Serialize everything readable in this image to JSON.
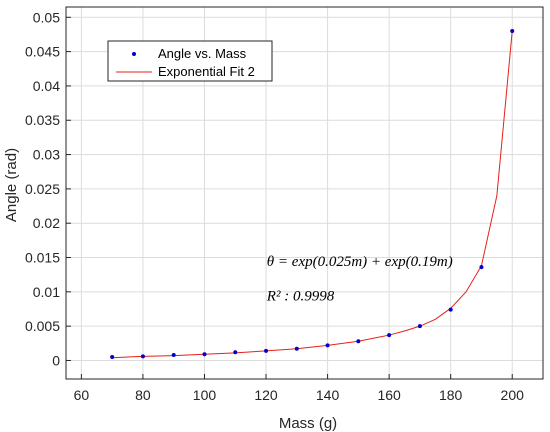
{
  "chart_data": {
    "type": "scatter",
    "xlabel": "Mass (g)",
    "ylabel": "Angle (rad)",
    "xlim": [
      55,
      210
    ],
    "ylim": [
      -0.0027,
      0.0515
    ],
    "x_ticks": [
      60,
      80,
      100,
      120,
      140,
      160,
      180,
      200
    ],
    "x_tick_labels": [
      "60",
      "80",
      "100",
      "120",
      "140",
      "160",
      "180",
      "200"
    ],
    "y_ticks": [
      0,
      0.005,
      0.01,
      0.015,
      0.02,
      0.025,
      0.03,
      0.035,
      0.04,
      0.045,
      0.05
    ],
    "y_tick_labels": [
      "0",
      "0.005",
      "0.01",
      "0.015",
      "0.02",
      "0.025",
      "0.03",
      "0.035",
      "0.04",
      "0.045",
      "0.05"
    ],
    "grid": true,
    "legend_position": "top-left",
    "series": [
      {
        "name": "Angle vs. Mass",
        "kind": "points",
        "color": "#0000cc",
        "x": [
          70,
          80,
          90,
          100,
          110,
          120,
          130,
          140,
          150,
          160,
          170,
          180,
          190,
          200
        ],
        "y": [
          0.0005,
          0.0006,
          0.0008,
          0.0009,
          0.0012,
          0.0014,
          0.0017,
          0.0022,
          0.0028,
          0.0037,
          0.005,
          0.0074,
          0.0136,
          0.048
        ]
      },
      {
        "name": "Exponential Fit 2",
        "kind": "line",
        "color": "#e8201a",
        "x": [
          70,
          80,
          90,
          100,
          110,
          120,
          130,
          140,
          150,
          160,
          165,
          170,
          175,
          180,
          185,
          190,
          195,
          200
        ],
        "y": [
          0.0004,
          0.0006,
          0.0007,
          0.0009,
          0.0011,
          0.0014,
          0.0017,
          0.0022,
          0.0028,
          0.0037,
          0.0043,
          0.005,
          0.006,
          0.0076,
          0.01,
          0.0138,
          0.024,
          0.048
        ]
      }
    ],
    "annotations": [
      {
        "text": "θ = exp(0.025m) + exp(0.19m)",
        "x": 130,
        "y": 0.0145
      },
      {
        "text": "R² : 0.9998",
        "x": 130,
        "y": 0.0095
      }
    ]
  }
}
